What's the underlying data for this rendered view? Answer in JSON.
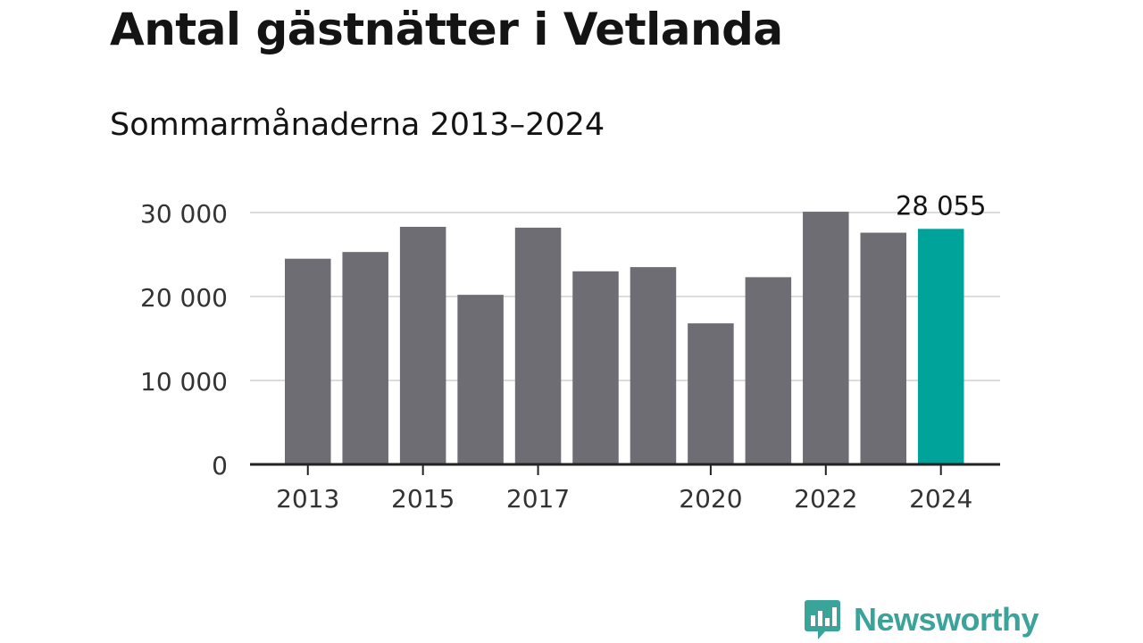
{
  "title": "Antal gästnätter i Vetlanda",
  "subtitle": "Sommarmånaderna 2013–2024",
  "brand": "Newsworthy",
  "colors": {
    "bar": "#6e6d73",
    "highlight": "#00a39a",
    "grid": "#dcdcdc",
    "axis": "#222222",
    "brand": "#3aa39a"
  },
  "chart_data": {
    "type": "bar",
    "categories": [
      "2013",
      "2014",
      "2015",
      "2016",
      "2017",
      "2018",
      "2019",
      "2020",
      "2021",
      "2022",
      "2023",
      "2024"
    ],
    "values": [
      24500,
      25300,
      28300,
      20200,
      28200,
      23000,
      23500,
      16800,
      22300,
      30100,
      27600,
      28055
    ],
    "x_tick_labels": [
      "2013",
      "",
      "2015",
      "",
      "2017",
      "",
      "",
      "2020",
      "",
      "2022",
      "",
      "2024"
    ],
    "y_ticks": [
      0,
      10000,
      20000,
      30000
    ],
    "y_tick_labels": [
      "0",
      "10 000",
      "20 000",
      "30 000"
    ],
    "ylim": [
      0,
      30000
    ],
    "highlight_index": 11,
    "annotation": "28 055",
    "grid": true
  }
}
